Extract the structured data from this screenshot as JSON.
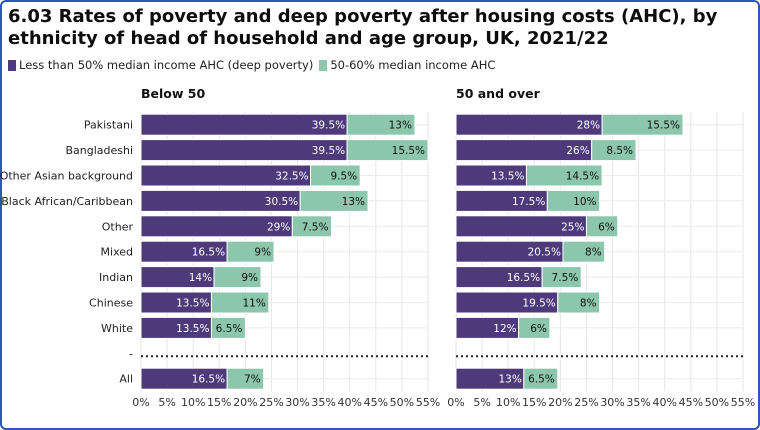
{
  "title": "6.03 Rates of poverty and deep poverty after housing costs (AHC), by ethnicity of head of household and age group, UK, 2021/22",
  "colors": {
    "deep": "#4e3a7a",
    "moderate": "#8bc6ad",
    "border": "#2f55b8"
  },
  "chart_data": {
    "type": "bar",
    "orientation": "horizontal",
    "stacked": true,
    "categories": [
      "Pakistani",
      "Bangladeshi",
      "Other Asian background",
      "Black African/Caribbean",
      "Other",
      "Mixed",
      "Indian",
      "Chinese",
      "White",
      "-",
      "All"
    ],
    "xlim": [
      0,
      55
    ],
    "x_ticks": [
      "0%",
      "5%",
      "10%",
      "15%",
      "20%",
      "25%",
      "30%",
      "35%",
      "40%",
      "45%",
      "50%",
      "55%"
    ],
    "legend": [
      {
        "name": "Less than 50% median income AHC (deep poverty)",
        "color": "#4e3a7a"
      },
      {
        "name": "50-60% median income AHC",
        "color": "#8bc6ad"
      }
    ],
    "legend_position": "top-left",
    "grid": true,
    "panels": [
      {
        "title": "Below 50",
        "series": [
          {
            "name": "Less than 50% median income AHC (deep poverty)",
            "values": [
              39.5,
              39.5,
              32.5,
              30.5,
              29,
              16.5,
              14,
              13.5,
              13.5,
              null,
              16.5
            ],
            "labels": [
              "39.5%",
              "39.5%",
              "32.5%",
              "30.5%",
              "29%",
              "16.5%",
              "14%",
              "13.5%",
              "13.5%",
              "",
              "16.5%"
            ]
          },
          {
            "name": "50-60% median income AHC",
            "values": [
              13,
              15.5,
              9.5,
              13,
              7.5,
              9,
              9,
              11,
              6.5,
              null,
              7
            ],
            "labels": [
              "13%",
              "15.5%",
              "9.5%",
              "13%",
              "7.5%",
              "9%",
              "9%",
              "11%",
              "6.5%",
              "",
              "7%"
            ]
          }
        ]
      },
      {
        "title": "50 and over",
        "series": [
          {
            "name": "Less than 50% median income AHC (deep poverty)",
            "values": [
              28,
              26,
              13.5,
              17.5,
              25,
              20.5,
              16.5,
              19.5,
              12,
              null,
              13
            ],
            "labels": [
              "28%",
              "26%",
              "13.5%",
              "17.5%",
              "25%",
              "20.5%",
              "16.5%",
              "19.5%",
              "12%",
              "",
              "13%"
            ]
          },
          {
            "name": "50-60% median income AHC",
            "values": [
              15.5,
              8.5,
              14.5,
              10,
              6,
              8,
              7.5,
              8,
              6,
              null,
              6.5
            ],
            "labels": [
              "15.5%",
              "8.5%",
              "14.5%",
              "10%",
              "6%",
              "8%",
              "7.5%",
              "8%",
              "6%",
              "",
              "6.5%"
            ]
          }
        ]
      }
    ]
  }
}
